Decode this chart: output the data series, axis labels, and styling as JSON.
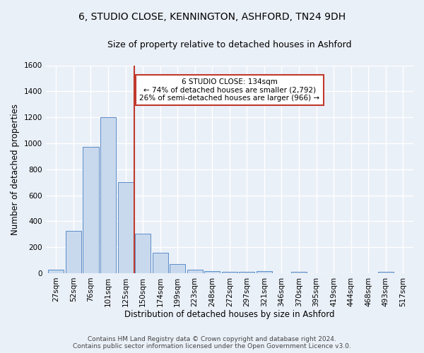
{
  "title_line1": "6, STUDIO CLOSE, KENNINGTON, ASHFORD, TN24 9DH",
  "title_line2": "Size of property relative to detached houses in Ashford",
  "xlabel": "Distribution of detached houses by size in Ashford",
  "ylabel": "Number of detached properties",
  "footnote1": "Contains HM Land Registry data © Crown copyright and database right 2024.",
  "footnote2": "Contains public sector information licensed under the Open Government Licence v3.0.",
  "annotation_line1": "6 STUDIO CLOSE: 134sqm",
  "annotation_line2": "← 74% of detached houses are smaller (2,792)",
  "annotation_line3": "26% of semi-detached houses are larger (966) →",
  "bar_labels": [
    "27sqm",
    "52sqm",
    "76sqm",
    "101sqm",
    "125sqm",
    "150sqm",
    "174sqm",
    "199sqm",
    "223sqm",
    "248sqm",
    "272sqm",
    "297sqm",
    "321sqm",
    "346sqm",
    "370sqm",
    "395sqm",
    "419sqm",
    "444sqm",
    "468sqm",
    "493sqm",
    "517sqm"
  ],
  "bar_values": [
    25,
    325,
    970,
    1200,
    700,
    305,
    155,
    70,
    25,
    15,
    10,
    10,
    15,
    0,
    12,
    0,
    0,
    0,
    0,
    12,
    0
  ],
  "bar_color": "#c9d9ed",
  "bar_edge_color": "#5b8dc8",
  "vline_x": 4.5,
  "vline_color": "#c0392b",
  "ylim": [
    0,
    1600
  ],
  "yticks": [
    0,
    200,
    400,
    600,
    800,
    1000,
    1200,
    1400,
    1600
  ],
  "bg_color": "#eaf0f8",
  "axes_bg_color": "#eaf0f8",
  "annotation_box_color": "#ffffff",
  "annotation_box_edge": "#c0392b",
  "grid_color": "#ffffff"
}
